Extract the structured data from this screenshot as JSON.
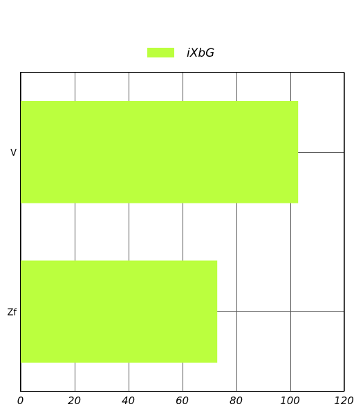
{
  "chart_data": {
    "type": "bar",
    "orientation": "horizontal",
    "categories": [
      "V",
      "Zf"
    ],
    "series": [
      {
        "name": "iXbG",
        "values": [
          103,
          73
        ],
        "color": "#bbff3e"
      }
    ],
    "xlim": [
      0,
      120
    ],
    "xticks": [
      0,
      20,
      40,
      60,
      80,
      100,
      120
    ],
    "grid": true,
    "legend_position": "top-center"
  }
}
